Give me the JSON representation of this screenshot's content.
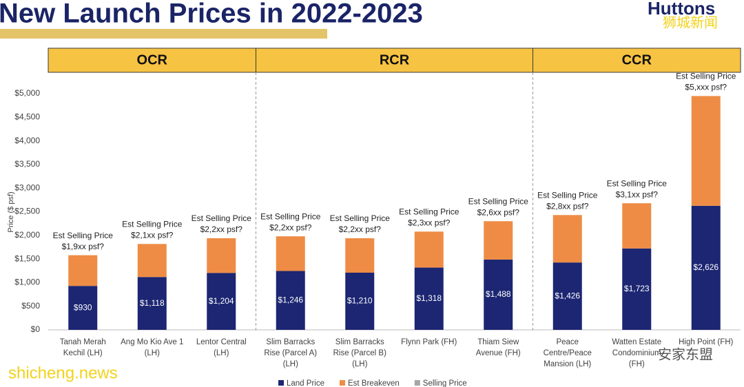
{
  "header": {
    "title": "New Launch Prices in 2022-2023",
    "brand": "Huttons",
    "watermarks": [
      "狮城新闻",
      "shicheng.news",
      "安家东盟"
    ]
  },
  "chart_data": {
    "type": "stacked_bar",
    "y_label": "Price ($ psf)",
    "regions": [
      {
        "name": "OCR",
        "count": 3
      },
      {
        "name": "RCR",
        "count": 4
      },
      {
        "name": "CCR",
        "count": 3
      }
    ],
    "categories": [
      "Tanah Merah\nKechil (LH)",
      "Ang Mo Kio Ave 1\n(LH)",
      "Lentor Central\n(LH)",
      "Slim Barracks\nRise (Parcel A)\n(LH)",
      "Slim Barracks\nRise (Parcel B)\n(LH)",
      "Flynn Park (FH)",
      "Thiam Siew\nAvenue (FH)",
      "Peace\nCentre/Peace\nMansion (LH)",
      "Watten Estate\nCondominium\n(FH)",
      "High Point (FH)"
    ],
    "series": [
      {
        "name": "Land Price",
        "color": "#1c2672",
        "values": [
          930,
          1118,
          1204,
          1246,
          1210,
          1318,
          1488,
          1426,
          1723,
          2626
        ],
        "value_labels": [
          "$930",
          "$1,118",
          "$1,204",
          "$1,246",
          "$1,210",
          "$1,318",
          "$1,488",
          "$1,426",
          "$1,723",
          "$2,626"
        ]
      },
      {
        "name": "Est Breakeven",
        "color": "#ee8c45",
        "values": [
          650,
          700,
          736,
          734,
          730,
          762,
          812,
          1004,
          957,
          2324
        ]
      },
      {
        "name": "Selling Price",
        "color": "#a6a6a6",
        "values": [
          null,
          null,
          null,
          null,
          null,
          null,
          null,
          null,
          null,
          null
        ]
      }
    ],
    "annotations": [
      [
        "Est Selling Price",
        "$1,9xx psf?"
      ],
      [
        "Est Selling Price",
        "$2,1xx psf?"
      ],
      [
        "Est Selling Price",
        "$2,2xx psf?"
      ],
      [
        "Est Selling Price",
        "$2,2xx psf?"
      ],
      [
        "Est Selling Price",
        "$2,2xx psf?"
      ],
      [
        "Est Selling Price",
        "$2,3xx psf?"
      ],
      [
        "Est Selling Price",
        "$2,6xx psf?"
      ],
      [
        "Est Selling Price",
        "$2,8xx psf?"
      ],
      [
        "Est Selling Price",
        "$3,1xx psf?"
      ],
      [
        "Est Selling Price",
        "$5,xxx psf?"
      ]
    ],
    "ylim": [
      0,
      5000
    ],
    "yticks": [
      {
        "value": 0,
        "label": "$0"
      },
      {
        "value": 500,
        "label": "$500"
      },
      {
        "value": 1000,
        "label": "$1,000"
      },
      {
        "value": 1500,
        "label": "$1,500"
      },
      {
        "value": 2000,
        "label": "$2,000"
      },
      {
        "value": 2500,
        "label": "$2,500"
      },
      {
        "value": 3000,
        "label": "$3,000"
      },
      {
        "value": 3500,
        "label": "$3,500"
      },
      {
        "value": 4000,
        "label": "$4,000"
      },
      {
        "value": 4500,
        "label": "$4,500"
      },
      {
        "value": 5000,
        "label": "$5,000"
      }
    ],
    "legend": "bottom"
  }
}
